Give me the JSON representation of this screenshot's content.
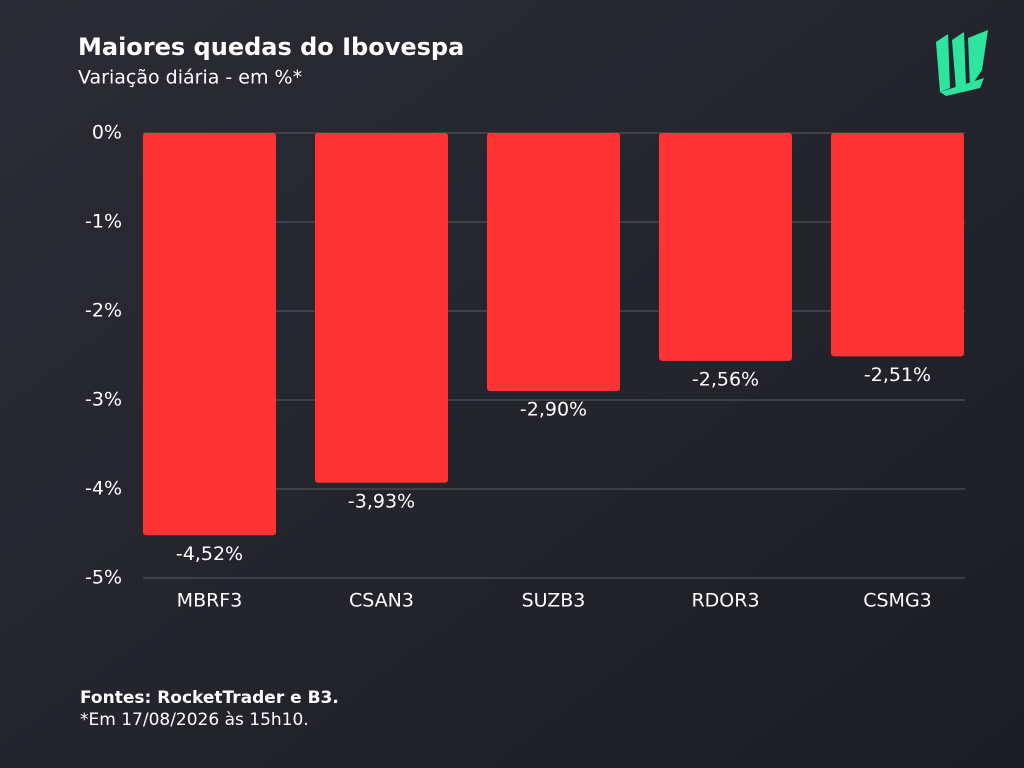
{
  "chart_data": {
    "type": "bar",
    "title": "Maiores quedas do Ibovespa",
    "subtitle": "Variação diária - em %*",
    "categories": [
      "MBRF3",
      "CSAN3",
      "SUZB3",
      "RDOR3",
      "CSMG3"
    ],
    "values": [
      -4.52,
      -3.93,
      -2.9,
      -2.56,
      -2.51
    ],
    "value_labels": [
      "-4,52%",
      "-3,93%",
      "-2,90%",
      "-2,56%",
      "-2,51%"
    ],
    "color": "#ff3333",
    "ylim": [
      -5,
      0
    ],
    "yticks": [
      {
        "value": 0,
        "label": "0%"
      },
      {
        "value": -1,
        "label": "-1%"
      },
      {
        "value": -2,
        "label": "-2%"
      },
      {
        "value": -3,
        "label": "-3%"
      },
      {
        "value": -4,
        "label": "-4%"
      },
      {
        "value": -5,
        "label": "-5%"
      }
    ],
    "grid": true,
    "source": "Fontes: RocketTrader e B3.",
    "note": "*Em 17/08/2026 às 15h10."
  }
}
